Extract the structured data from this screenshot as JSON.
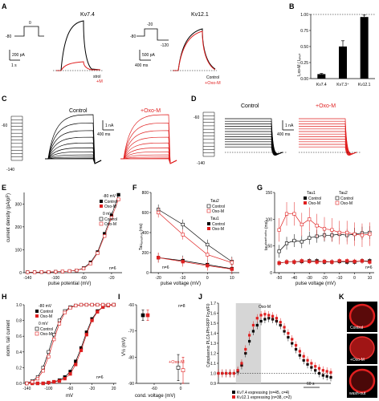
{
  "colors": {
    "control": "#000000",
    "oxo": "#e02020",
    "grey": "#cccccc"
  },
  "panels": {
    "A": {
      "label": "A",
      "title_left": "Kν7.4",
      "title_right": "Kν12.1",
      "v_left": {
        "hold": "-80",
        "step": "0"
      },
      "v_right": {
        "hold": "-80",
        "step": "-20",
        "tail": "-120"
      },
      "scale_left": {
        "current": "200 pA",
        "time": "1 s"
      },
      "scale_right": {
        "current": "500 pA",
        "time": "400 ms"
      },
      "legend_left": {
        "control": "strol",
        "oxo": "+M"
      },
      "legend_right": {
        "control": "Control",
        "oxo": "+Oxo-M"
      }
    },
    "B": {
      "label": "B",
      "ylabel": "I₀xo-M / Iₑₚₑᵣₜ",
      "categories": [
        "Kν7.4",
        "Kν7.3⁺",
        "Kν12.1"
      ],
      "yticks": [
        "0.00",
        "0.25",
        "0.50",
        "0.75",
        "1.00"
      ]
    },
    "C": {
      "label": "C",
      "left_v": "-60",
      "bottom_v": "-140",
      "control": "Control",
      "oxo": "+Oxo-M",
      "scale": {
        "current": "1 nA",
        "time": "400 ms"
      }
    },
    "D": {
      "label": "D",
      "left_v": "-60",
      "bottom_v": "-140",
      "control": "Control",
      "oxo": "+Oxo-M",
      "scale": {
        "current": "1 nA",
        "time": "400 ms"
      }
    },
    "E": {
      "label": "E",
      "ylabel": "current density (pA/pF)",
      "xlabel": "pulse potential (mV)",
      "xticks": [
        "-140",
        "-100",
        "-60",
        "-20"
      ],
      "yticks": [
        "0",
        "100",
        "200",
        "300"
      ],
      "legend": [
        "-80 mV",
        "Control",
        "Oxo-M",
        "0 mV",
        "Control",
        "Oxo-M"
      ],
      "n": "n=6"
    },
    "F": {
      "label": "F",
      "ylabel": "Tauₐₑᵢᵥₐₜᵢₒₙ (ms)",
      "xlabel": "pulse voltage (mV)",
      "xticks": [
        "-20",
        "-10",
        "0",
        "10"
      ],
      "yticks": [
        "0",
        "200",
        "400",
        "600",
        "800"
      ],
      "legend": [
        "Tau2",
        "Control",
        "Oxo-M",
        "Tau1",
        "Control",
        "Oxo-M"
      ],
      "n": "n=6"
    },
    "G": {
      "label": "G",
      "ylabel": "tauᵈᵉᵃᶜᵗⁱᵛᵃᵗⁱᵒⁿ (ms)",
      "xlabel": "pulse voltage (mV)",
      "xticks": [
        "-50",
        "-40",
        "-30",
        "-20",
        "-10",
        "0",
        "10"
      ],
      "yticks": [
        "0",
        "50",
        "100",
        "150"
      ],
      "legend": [
        "Tau1",
        "Control",
        "Oxo-M",
        "Tau2",
        "Control",
        "Oxo-M"
      ],
      "n": "n=6"
    },
    "H": {
      "label": "H",
      "ylabel": "norm. tail current",
      "xlabel": "mV",
      "xticks": [
        "-140",
        "-100",
        "-60",
        "-20",
        "20"
      ],
      "yticks": [
        "0.0",
        "0.2",
        "0.4",
        "0.6",
        "0.8",
        "1.0"
      ],
      "legend": [
        "-80 mV",
        "Control",
        "Oxo-M",
        "0 mV",
        "Control",
        "Oxo-M"
      ],
      "n": "n=6"
    },
    "I": {
      "label": "I",
      "ylabel": "V½ (mV)",
      "xlabel": "cond. voltage (mV)",
      "xticks": [
        "-60",
        "0"
      ],
      "yticks": [
        "-90",
        "-80",
        "-70",
        "-60"
      ],
      "n": "n=8",
      "oxo": "+Oxo-M"
    },
    "J": {
      "label": "J",
      "ylabel": "Cytoplasmic PLCδ-PH-RFP Fcyt/F0",
      "oxo_bar": "Oxo-M",
      "time_scale": "60 s",
      "yticks": [
        "0.9",
        "1.0",
        "1.1",
        "1.2",
        "1.3",
        "1.4",
        "1.5",
        "1.6",
        "1.7"
      ],
      "legend": [
        "Kν7.4 expressing (n=45, c=4)",
        "Kν12.1 expressing (n=38, c=2)"
      ]
    },
    "K": {
      "label": "K",
      "captions": [
        "Control",
        "+Oxo-M",
        "wash-out"
      ]
    }
  },
  "chart_data": [
    {
      "type": "bar",
      "panel": "B",
      "categories": [
        "Kv7.4",
        "Kv7.3+",
        "Kv12.1"
      ],
      "values": [
        0.07,
        0.5,
        0.96
      ],
      "errors": [
        0.01,
        0.09,
        0.03
      ],
      "ylim": [
        0,
        1.0
      ]
    },
    {
      "type": "scatter",
      "panel": "E",
      "x": [
        -140,
        -130,
        -120,
        -110,
        -100,
        -90,
        -80,
        -70,
        -60,
        -50,
        -40,
        -30,
        -20,
        -10
      ],
      "series": [
        {
          "name": "Control",
          "values": [
            2,
            2,
            3,
            3,
            4,
            5,
            7,
            10,
            20,
            45,
            90,
            170,
            250,
            340
          ]
        },
        {
          "name": "Oxo-M",
          "values": [
            2,
            2,
            3,
            3,
            4,
            5,
            7,
            10,
            18,
            40,
            85,
            160,
            240,
            320
          ]
        }
      ],
      "xlim": [
        -145,
        -5
      ],
      "ylim": [
        0,
        350
      ]
    },
    {
      "type": "line",
      "panel": "F",
      "x": [
        -20,
        -10,
        0,
        10
      ],
      "series": [
        {
          "name": "Tau2 Control",
          "values": [
            630,
            480,
            280,
            110
          ]
        },
        {
          "name": "Tau2 Oxo-M",
          "values": [
            600,
            380,
            180,
            100
          ]
        },
        {
          "name": "Tau1 Control",
          "values": [
            150,
            120,
            80,
            40
          ]
        },
        {
          "name": "Tau1 Oxo-M",
          "values": [
            150,
            110,
            70,
            35
          ]
        }
      ],
      "ylim": [
        0,
        800
      ]
    },
    {
      "type": "line",
      "panel": "G",
      "x": [
        -50,
        -45,
        -40,
        -35,
        -30,
        -25,
        -20,
        -15,
        -10,
        -5,
        0,
        5,
        10
      ],
      "series": [
        {
          "name": "Tau1 Control",
          "values": [
            18,
            20,
            20,
            21,
            22,
            22,
            20,
            20,
            21,
            20,
            20,
            22,
            22
          ]
        },
        {
          "name": "Tau1 Oxo-M",
          "values": [
            18,
            20,
            20,
            22,
            21,
            20,
            21,
            20,
            22,
            22,
            21,
            22,
            20
          ]
        },
        {
          "name": "Tau2 Control",
          "values": [
            40,
            55,
            60,
            58,
            65,
            68,
            70,
            70,
            72,
            70,
            72,
            74,
            75
          ]
        },
        {
          "name": "Tau2 Oxo-M",
          "values": [
            80,
            110,
            110,
            90,
            100,
            88,
            82,
            80,
            75,
            75,
            72,
            70,
            72
          ]
        }
      ],
      "ylim": [
        0,
        150
      ]
    },
    {
      "type": "line",
      "panel": "H",
      "x": [
        -140,
        -130,
        -120,
        -110,
        -100,
        -90,
        -80,
        -70,
        -60,
        -50,
        -40,
        -30,
        -20,
        -10,
        0,
        10,
        20
      ],
      "series": [
        {
          "name": "-80 mV Control",
          "values": [
            0.0,
            0.0,
            0.0,
            0.0,
            0.01,
            0.02,
            0.04,
            0.08,
            0.15,
            0.28,
            0.45,
            0.65,
            0.82,
            0.92,
            0.97,
            0.99,
            1.0
          ]
        },
        {
          "name": "-80 mV Oxo-M",
          "values": [
            0.0,
            0.0,
            0.0,
            0.0,
            0.01,
            0.02,
            0.03,
            0.06,
            0.12,
            0.24,
            0.42,
            0.62,
            0.8,
            0.91,
            0.97,
            0.99,
            1.0
          ]
        },
        {
          "name": "0 mV Control",
          "values": [
            0.0,
            0.03,
            0.08,
            0.2,
            0.4,
            0.62,
            0.8,
            0.92,
            0.97,
            0.99,
            1.0,
            1.0,
            1.0,
            1.0,
            1.0,
            1.0,
            1.0
          ]
        },
        {
          "name": "0 mV Oxo-M",
          "values": [
            0.0,
            0.02,
            0.06,
            0.16,
            0.34,
            0.56,
            0.76,
            0.9,
            0.96,
            0.99,
            1.0,
            1.0,
            1.0,
            1.0,
            1.0,
            1.0,
            1.0
          ]
        }
      ],
      "ylim": [
        0,
        1.0
      ]
    },
    {
      "type": "scatter",
      "panel": "I",
      "x": [
        -80,
        0
      ],
      "series": [
        {
          "name": "Control",
          "values": [
            -64,
            -84
          ]
        },
        {
          "name": "Oxo-M",
          "values": [
            -64,
            -85
          ]
        }
      ],
      "ylim": [
        -90,
        -60
      ]
    },
    {
      "type": "line",
      "panel": "J",
      "x_unit": "s",
      "series": [
        {
          "name": "Kv7.4 expressing (n=45, c=4)",
          "values": [
            1.0,
            1.0,
            1.0,
            1.0,
            1.0,
            1.02,
            1.08,
            1.2,
            1.32,
            1.42,
            1.48,
            1.52,
            1.54,
            1.55,
            1.54,
            1.52,
            1.48,
            1.42,
            1.36,
            1.3,
            1.24,
            1.18,
            1.13,
            1.09,
            1.06,
            1.03,
            1.0,
            0.98,
            0.97,
            0.96
          ]
        },
        {
          "name": "Kv12.1 expressing (n=38, c=2)",
          "values": [
            1.0,
            1.0,
            1.0,
            1.0,
            1.0,
            1.03,
            1.1,
            1.24,
            1.38,
            1.48,
            1.55,
            1.58,
            1.59,
            1.58,
            1.57,
            1.55,
            1.51,
            1.46,
            1.4,
            1.34,
            1.28,
            1.22,
            1.17,
            1.13,
            1.1,
            1.07,
            1.05,
            1.03,
            1.02,
            1.01
          ]
        }
      ],
      "ylim": [
        0.9,
        1.7
      ]
    }
  ]
}
